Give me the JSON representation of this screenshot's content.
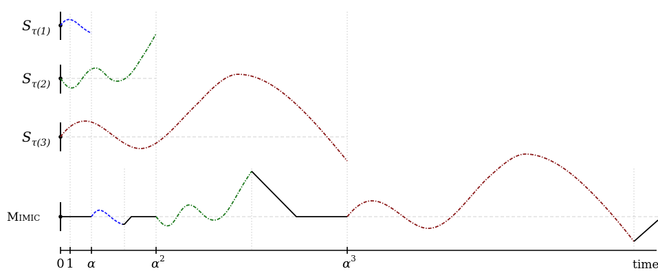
{
  "row_labels": {
    "s1": {
      "base": "S",
      "sub": "τ(1)"
    },
    "s2": {
      "base": "S",
      "sub": "τ(2)"
    },
    "s3": {
      "base": "S",
      "sub": "τ(3)"
    },
    "mimic": "Mimic"
  },
  "axis_ticks": {
    "zero": "0",
    "one": "1",
    "alpha": "α",
    "alpha2": {
      "base": "α",
      "sup": "2"
    },
    "alpha3": {
      "base": "α",
      "sup": "3"
    },
    "time": "time"
  },
  "colors": {
    "s1": "#1a1aff",
    "s2": "#1e7a1e",
    "s3": "#8b1a1a",
    "mimic": "#000000",
    "guide": "#c8c8c8"
  }
}
